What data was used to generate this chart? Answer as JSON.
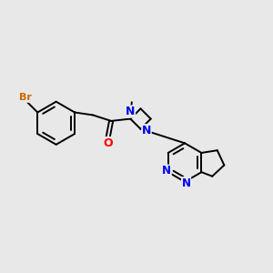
{
  "background_color": "#e8e8e8",
  "bond_color": "#000000",
  "bond_width": 1.4,
  "atom_colors": {
    "Br": "#cc6600",
    "N": "#0000ee",
    "O": "#ff0000",
    "C": "#000000"
  },
  "font_size": 8.5,
  "figsize": [
    3.0,
    3.0
  ],
  "dpi": 100
}
